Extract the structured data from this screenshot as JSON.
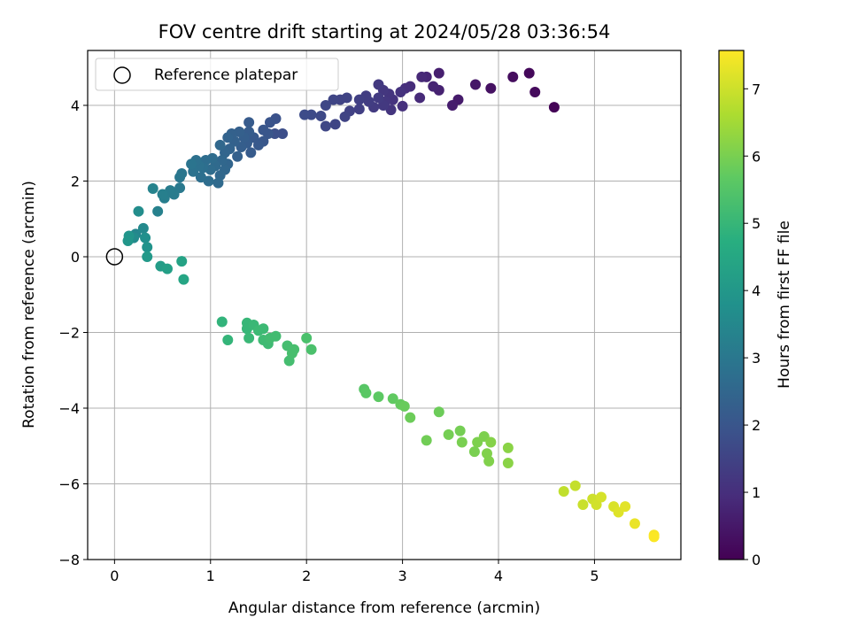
{
  "chart_data": {
    "type": "scatter",
    "title": "FOV centre drift starting at 2024/05/28 03:36:54",
    "xlabel": "Angular distance from reference (arcmin)",
    "ylabel": "Rotation from reference (arcmin)",
    "xlim": [
      -0.28,
      5.9
    ],
    "ylim": [
      -8.0,
      5.45
    ],
    "x_ticks": [
      0,
      1,
      2,
      3,
      4,
      5
    ],
    "y_ticks": [
      -8,
      -6,
      -4,
      -2,
      0,
      2,
      4
    ],
    "grid": true,
    "legend": {
      "location": "top-left",
      "label": "Reference platepar"
    },
    "reference_point": {
      "x": 0,
      "y": 0
    },
    "colorbar": {
      "label": "Hours from first FF file",
      "min": 0,
      "max": 7.57,
      "ticks": [
        0,
        1,
        2,
        3,
        4,
        5,
        6,
        7
      ],
      "colormap": "viridis"
    },
    "series": [
      {
        "points": [
          [
            4.58,
            3.95,
            0.05
          ],
          [
            4.32,
            4.85,
            0.15
          ],
          [
            4.38,
            4.35,
            0.2
          ],
          [
            4.15,
            4.75,
            0.25
          ],
          [
            3.92,
            4.45,
            0.35
          ],
          [
            3.76,
            4.55,
            0.45
          ],
          [
            3.58,
            4.15,
            0.55
          ],
          [
            3.52,
            4.0,
            0.6
          ],
          [
            3.38,
            4.85,
            0.65
          ],
          [
            3.38,
            4.4,
            0.7
          ],
          [
            3.32,
            4.5,
            0.75
          ],
          [
            3.25,
            4.75,
            0.8
          ],
          [
            3.2,
            4.75,
            0.85
          ],
          [
            3.18,
            4.2,
            0.9
          ],
          [
            3.08,
            4.5,
            0.95
          ],
          [
            3.03,
            4.45,
            1.0
          ],
          [
            3.0,
            3.98,
            1.05
          ],
          [
            2.98,
            4.35,
            1.1
          ],
          [
            2.9,
            4.15,
            1.1
          ],
          [
            2.88,
            3.88,
            1.15
          ],
          [
            2.86,
            4.3,
            1.15
          ],
          [
            2.82,
            4.1,
            1.2
          ],
          [
            2.8,
            4.4,
            1.2
          ],
          [
            2.8,
            4.0,
            1.25
          ],
          [
            2.75,
            4.55,
            1.25
          ],
          [
            2.75,
            4.2,
            1.3
          ],
          [
            2.7,
            3.95,
            1.3
          ],
          [
            2.65,
            4.1,
            1.35
          ],
          [
            2.62,
            4.25,
            1.35
          ],
          [
            2.55,
            4.15,
            1.4
          ],
          [
            2.55,
            3.9,
            1.4
          ],
          [
            2.45,
            3.85,
            1.45
          ],
          [
            2.4,
            3.7,
            1.5
          ],
          [
            2.42,
            4.2,
            1.5
          ],
          [
            2.35,
            4.15,
            1.5
          ],
          [
            2.3,
            3.5,
            1.55
          ],
          [
            2.28,
            4.15,
            1.55
          ],
          [
            2.2,
            4.0,
            1.6
          ],
          [
            2.2,
            3.45,
            1.6
          ],
          [
            2.15,
            3.72,
            1.65
          ],
          [
            2.05,
            3.75,
            1.7
          ],
          [
            1.98,
            3.75,
            1.75
          ],
          [
            1.75,
            3.25,
            1.8
          ],
          [
            1.67,
            3.25,
            1.85
          ],
          [
            1.68,
            3.65,
            1.9
          ],
          [
            1.62,
            3.55,
            1.95
          ],
          [
            1.6,
            3.25,
            2.0
          ],
          [
            1.55,
            3.35,
            2.0
          ],
          [
            1.55,
            3.05,
            2.05
          ],
          [
            1.5,
            2.95,
            2.1
          ],
          [
            1.45,
            3.15,
            2.1
          ],
          [
            1.42,
            2.75,
            2.15
          ],
          [
            1.4,
            3.55,
            2.15
          ],
          [
            1.4,
            3.3,
            2.2
          ],
          [
            1.38,
            3.0,
            2.2
          ],
          [
            1.35,
            3.15,
            2.25
          ],
          [
            1.32,
            2.9,
            2.25
          ],
          [
            1.3,
            3.3,
            2.3
          ],
          [
            1.28,
            2.65,
            2.3
          ],
          [
            1.25,
            3.05,
            2.35
          ],
          [
            1.22,
            3.25,
            2.35
          ],
          [
            1.2,
            2.85,
            2.4
          ],
          [
            1.18,
            3.15,
            2.4
          ],
          [
            1.18,
            2.45,
            2.45
          ],
          [
            1.15,
            2.75,
            2.45
          ],
          [
            1.15,
            2.3,
            2.5
          ],
          [
            1.12,
            2.55,
            2.5
          ],
          [
            1.1,
            2.95,
            2.55
          ],
          [
            1.1,
            2.15,
            2.55
          ],
          [
            1.08,
            1.95,
            2.6
          ],
          [
            1.05,
            2.4,
            2.6
          ],
          [
            1.02,
            2.6,
            2.65
          ],
          [
            1.0,
            2.3,
            2.65
          ],
          [
            0.98,
            2.0,
            2.7
          ],
          [
            0.95,
            2.55,
            2.7
          ],
          [
            0.92,
            2.35,
            2.75
          ],
          [
            0.9,
            2.1,
            2.75
          ],
          [
            0.88,
            2.4,
            2.8
          ],
          [
            0.85,
            2.55,
            2.8
          ],
          [
            0.82,
            2.25,
            2.85
          ],
          [
            0.8,
            2.45,
            2.9
          ],
          [
            0.7,
            2.2,
            2.95
          ],
          [
            0.68,
            2.1,
            3.0
          ],
          [
            0.68,
            1.82,
            3.05
          ],
          [
            0.62,
            1.65,
            3.1
          ],
          [
            0.58,
            1.75,
            3.15
          ],
          [
            0.52,
            1.55,
            3.2
          ],
          [
            0.5,
            1.65,
            3.25
          ],
          [
            0.45,
            1.2,
            3.3
          ],
          [
            0.4,
            1.8,
            3.35
          ],
          [
            0.22,
            0.6,
            3.45
          ],
          [
            0.3,
            0.75,
            3.55
          ],
          [
            0.2,
            0.5,
            3.6
          ],
          [
            0.25,
            1.2,
            3.65
          ],
          [
            0.32,
            0.5,
            3.75
          ],
          [
            0.34,
            0.25,
            3.85
          ],
          [
            0.15,
            0.55,
            3.9
          ],
          [
            0.14,
            0.42,
            3.95
          ],
          [
            0.34,
            0.0,
            4.05
          ],
          [
            0.48,
            -0.25,
            4.15
          ],
          [
            0.55,
            -0.32,
            4.25
          ],
          [
            0.7,
            -0.12,
            4.35
          ],
          [
            0.72,
            -0.6,
            4.45
          ],
          [
            1.12,
            -1.72,
            4.9
          ],
          [
            1.18,
            -2.2,
            4.95
          ],
          [
            1.38,
            -1.75,
            5.0
          ],
          [
            1.38,
            -1.9,
            5.0
          ],
          [
            1.4,
            -2.15,
            5.05
          ],
          [
            1.45,
            -1.8,
            5.05
          ],
          [
            1.5,
            -1.95,
            5.1
          ],
          [
            1.55,
            -1.9,
            5.1
          ],
          [
            1.55,
            -2.2,
            5.15
          ],
          [
            1.6,
            -2.3,
            5.15
          ],
          [
            1.62,
            -2.15,
            5.2
          ],
          [
            1.68,
            -2.1,
            5.2
          ],
          [
            1.8,
            -2.35,
            5.25
          ],
          [
            1.82,
            -2.75,
            5.25
          ],
          [
            1.85,
            -2.55,
            5.3
          ],
          [
            1.87,
            -2.45,
            5.3
          ],
          [
            2.0,
            -2.15,
            5.35
          ],
          [
            2.05,
            -2.45,
            5.35
          ],
          [
            2.6,
            -3.5,
            5.55
          ],
          [
            2.62,
            -3.6,
            5.6
          ],
          [
            2.75,
            -3.7,
            5.65
          ],
          [
            2.9,
            -3.75,
            5.7
          ],
          [
            2.98,
            -3.9,
            5.75
          ],
          [
            3.02,
            -3.95,
            5.8
          ],
          [
            3.08,
            -4.25,
            5.85
          ],
          [
            3.38,
            -4.1,
            5.85
          ],
          [
            3.25,
            -4.85,
            5.9
          ],
          [
            3.48,
            -4.7,
            5.95
          ],
          [
            3.6,
            -4.6,
            5.95
          ],
          [
            3.62,
            -4.9,
            6.0
          ],
          [
            3.75,
            -5.15,
            6.0
          ],
          [
            3.78,
            -4.9,
            6.05
          ],
          [
            3.85,
            -4.75,
            6.05
          ],
          [
            3.88,
            -5.2,
            6.1
          ],
          [
            3.9,
            -5.4,
            6.1
          ],
          [
            3.92,
            -4.9,
            6.15
          ],
          [
            4.1,
            -5.05,
            6.2
          ],
          [
            4.1,
            -5.45,
            6.2
          ],
          [
            4.68,
            -6.2,
            6.85
          ],
          [
            4.8,
            -6.05,
            6.9
          ],
          [
            4.88,
            -6.55,
            6.95
          ],
          [
            4.98,
            -6.4,
            7.0
          ],
          [
            5.02,
            -6.55,
            7.05
          ],
          [
            5.07,
            -6.35,
            7.1
          ],
          [
            5.2,
            -6.6,
            7.15
          ],
          [
            5.25,
            -6.75,
            7.2
          ],
          [
            5.32,
            -6.6,
            7.25
          ],
          [
            5.42,
            -7.05,
            7.35
          ],
          [
            5.62,
            -7.35,
            7.5
          ],
          [
            5.62,
            -7.4,
            7.55
          ]
        ]
      }
    ]
  }
}
